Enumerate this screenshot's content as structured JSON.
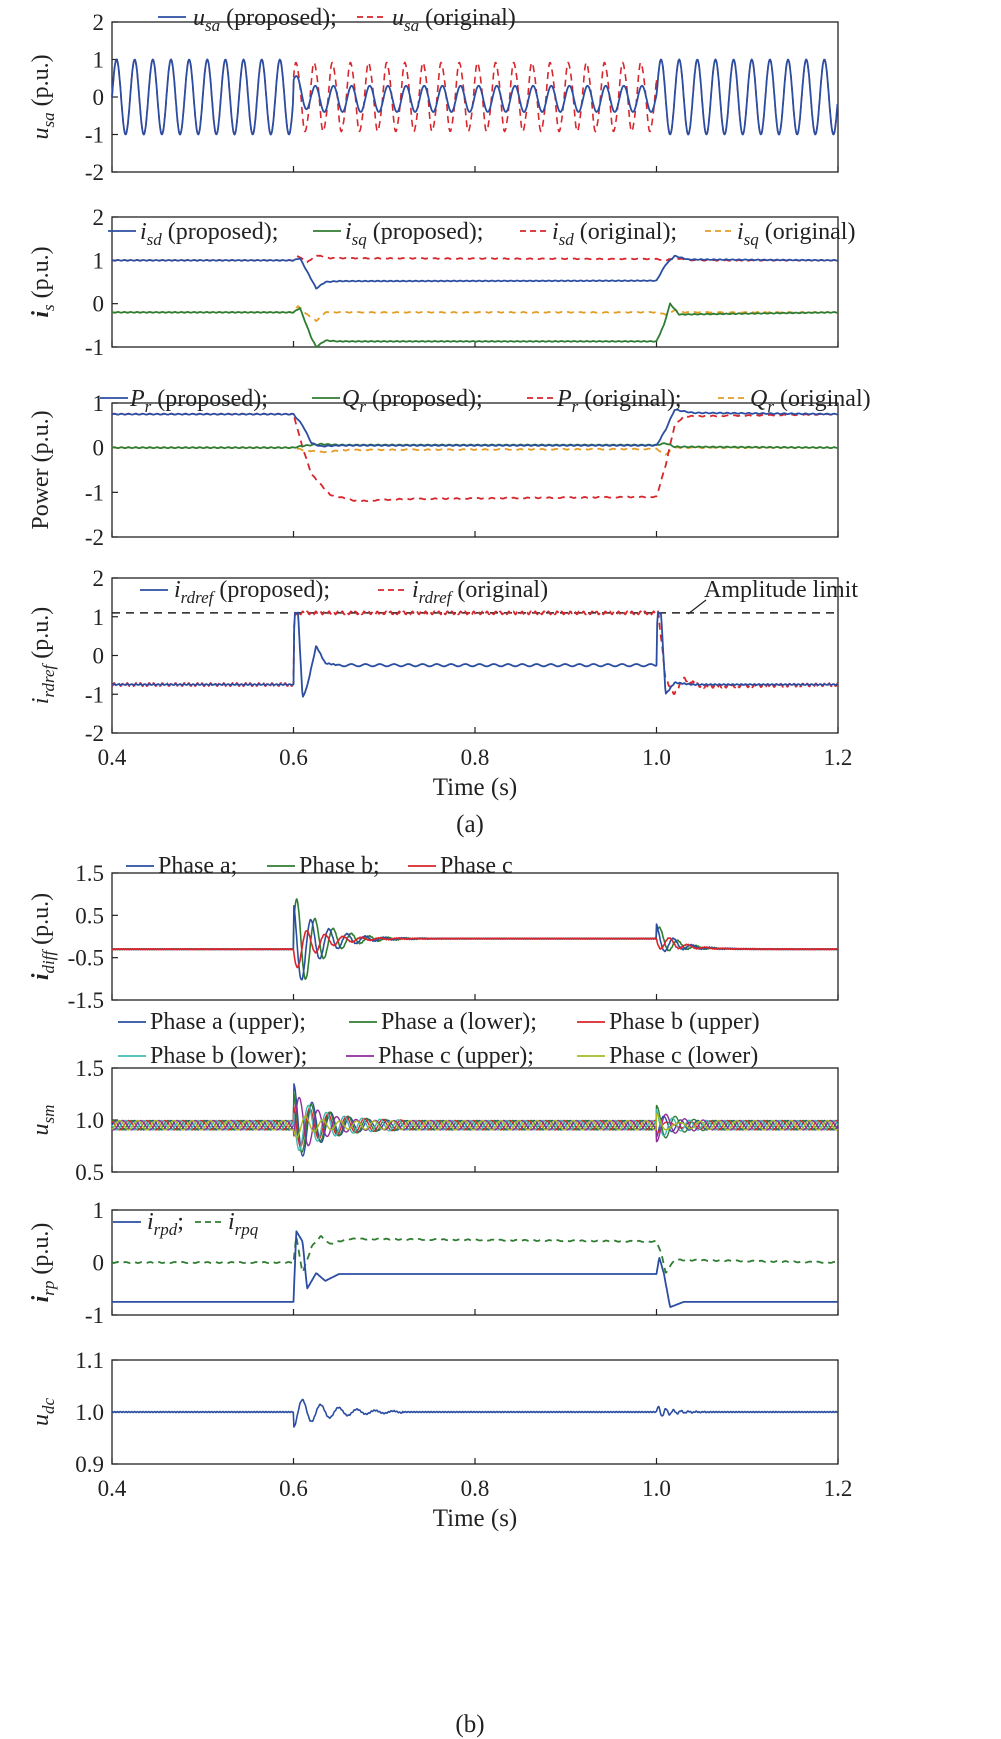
{
  "colors": {
    "blue": "#2b4ea2",
    "green": "#2e7d32",
    "red": "#d7262c",
    "orange": "#e39c25",
    "cyan": "#3fb9b0",
    "purple": "#8e2d9c",
    "olive": "#a8ba1f",
    "axis": "#222222"
  },
  "chart_data": [
    {
      "panel": "a",
      "type": "line",
      "ylabel": "u_sa (p.u.)",
      "ylim": [
        -2,
        2
      ],
      "yticks": [
        "2",
        "1",
        "0",
        "-1",
        "-2"
      ],
      "legend": "u_sa (proposed); u_sa (original)",
      "x_range": [
        0.4,
        1.2
      ],
      "series": [
        {
          "name": "u_sa (proposed)",
          "style": "solid",
          "color": "blue",
          "description": "50 Hz sinusoid amplitude 1.0; during 0.6-1.0 s amplitude about 0.35 oscillating around 0"
        },
        {
          "name": "u_sa (original)",
          "style": "dashed",
          "color": "red",
          "description": "during 0.6-1.0 s sinusoid amplitude about 0.9; outside identical to proposed"
        }
      ]
    },
    {
      "panel": "a",
      "type": "line",
      "ylabel": "i_s (p.u.)",
      "ylim": [
        -1,
        2
      ],
      "yticks": [
        "2",
        "1",
        "0",
        "-1"
      ],
      "legend": "i_sd (proposed); i_sq (proposed); i_sd (original); i_sq (original)",
      "x_range": [
        0.4,
        1.2
      ],
      "series": [
        {
          "name": "i_sd (proposed)",
          "style": "solid",
          "color": "blue",
          "points": [
            [
              0.4,
              1.0
            ],
            [
              0.6,
              1.0
            ],
            [
              0.607,
              1.05
            ],
            [
              0.62,
              0.55
            ],
            [
              0.625,
              0.35
            ],
            [
              0.635,
              0.5
            ],
            [
              0.65,
              0.52
            ],
            [
              1.0,
              0.53
            ],
            [
              1.01,
              0.9
            ],
            [
              1.02,
              1.1
            ],
            [
              1.035,
              1.02
            ],
            [
              1.2,
              1.0
            ]
          ]
        },
        {
          "name": "i_sq (proposed)",
          "style": "solid",
          "color": "green",
          "points": [
            [
              0.4,
              -0.2
            ],
            [
              0.6,
              -0.2
            ],
            [
              0.607,
              -0.1
            ],
            [
              0.62,
              -0.8
            ],
            [
              0.625,
              -1.0
            ],
            [
              0.635,
              -0.85
            ],
            [
              0.65,
              -0.87
            ],
            [
              1.0,
              -0.87
            ],
            [
              1.008,
              -0.5
            ],
            [
              1.015,
              0.0
            ],
            [
              1.025,
              -0.25
            ],
            [
              1.2,
              -0.2
            ]
          ]
        },
        {
          "name": "i_sd (original)",
          "style": "dashed",
          "color": "red",
          "points": [
            [
              0.4,
              1.0
            ],
            [
              0.6,
              1.0
            ],
            [
              0.605,
              1.1
            ],
            [
              0.615,
              0.95
            ],
            [
              0.625,
              1.12
            ],
            [
              0.64,
              1.05
            ],
            [
              1.0,
              1.03
            ],
            [
              1.01,
              1.0
            ],
            [
              1.02,
              1.05
            ],
            [
              1.04,
              1.0
            ],
            [
              1.2,
              1.0
            ]
          ]
        },
        {
          "name": "i_sq (original)",
          "style": "dashed",
          "color": "orange",
          "points": [
            [
              0.4,
              -0.2
            ],
            [
              0.6,
              -0.2
            ],
            [
              0.605,
              -0.05
            ],
            [
              0.615,
              -0.25
            ],
            [
              0.625,
              -0.4
            ],
            [
              0.635,
              -0.2
            ],
            [
              1.0,
              -0.2
            ],
            [
              1.01,
              -0.25
            ],
            [
              1.02,
              -0.15
            ],
            [
              1.03,
              -0.2
            ],
            [
              1.2,
              -0.2
            ]
          ]
        }
      ]
    },
    {
      "panel": "a",
      "type": "line",
      "ylabel": "Power (p.u.)",
      "ylim": [
        -2,
        1
      ],
      "yticks": [
        "1",
        "0",
        "-1",
        "-2"
      ],
      "legend": "P_r (proposed); Q_r (proposed); P_r (original); Q_r (original)",
      "x_range": [
        0.4,
        1.2
      ],
      "series": [
        {
          "name": "P_r (proposed)",
          "style": "solid",
          "color": "blue",
          "points": [
            [
              0.4,
              0.75
            ],
            [
              0.6,
              0.75
            ],
            [
              0.61,
              0.5
            ],
            [
              0.62,
              0.1
            ],
            [
              0.63,
              0.03
            ],
            [
              0.65,
              0.05
            ],
            [
              1.0,
              0.05
            ],
            [
              1.01,
              0.4
            ],
            [
              1.02,
              0.85
            ],
            [
              1.04,
              0.78
            ],
            [
              1.2,
              0.75
            ]
          ]
        },
        {
          "name": "Q_r (proposed)",
          "style": "solid",
          "color": "green",
          "points": [
            [
              0.4,
              0.0
            ],
            [
              0.6,
              0.0
            ],
            [
              0.61,
              0.04
            ],
            [
              0.63,
              0.08
            ],
            [
              0.65,
              0.06
            ],
            [
              1.0,
              0.06
            ],
            [
              1.01,
              0.1
            ],
            [
              1.02,
              0.02
            ],
            [
              1.2,
              0.0
            ]
          ]
        },
        {
          "name": "P_r (original)",
          "style": "dashed",
          "color": "red",
          "points": [
            [
              0.4,
              0.75
            ],
            [
              0.6,
              0.75
            ],
            [
              0.61,
              0.0
            ],
            [
              0.62,
              -0.6
            ],
            [
              0.64,
              -1.05
            ],
            [
              0.67,
              -1.2
            ],
            [
              0.72,
              -1.15
            ],
            [
              1.0,
              -1.1
            ],
            [
              1.01,
              -0.4
            ],
            [
              1.02,
              0.5
            ],
            [
              1.03,
              0.7
            ],
            [
              1.2,
              0.75
            ]
          ]
        },
        {
          "name": "Q_r (original)",
          "style": "dashed",
          "color": "orange",
          "points": [
            [
              0.4,
              0.0
            ],
            [
              0.6,
              0.0
            ],
            [
              0.61,
              -0.05
            ],
            [
              0.63,
              -0.1
            ],
            [
              0.66,
              -0.05
            ],
            [
              1.0,
              -0.03
            ],
            [
              1.01,
              -0.15
            ],
            [
              1.02,
              0.0
            ],
            [
              1.2,
              0.0
            ]
          ]
        }
      ]
    },
    {
      "panel": "a",
      "type": "line",
      "ylabel": "i_rdref (p.u.)",
      "ylim": [
        -2,
        2
      ],
      "yticks": [
        "2",
        "1",
        "0",
        "-1",
        "-2"
      ],
      "xticks": [
        "0.4",
        "0.6",
        "0.8",
        "1.0",
        "1.2"
      ],
      "xlabel": "Time (s)",
      "legend": "i_rdref (proposed); i_rdref (original)",
      "annotation": "Amplitude limit",
      "amplitude_limit": 1.1,
      "x_range": [
        0.4,
        1.2
      ],
      "series": [
        {
          "name": "i_rdref (proposed)",
          "style": "solid",
          "color": "blue",
          "points": [
            [
              0.4,
              -0.75
            ],
            [
              0.6,
              -0.75
            ],
            [
              0.601,
              1.1
            ],
            [
              0.605,
              1.1
            ],
            [
              0.61,
              -1.1
            ],
            [
              0.615,
              -0.8
            ],
            [
              0.625,
              0.25
            ],
            [
              0.635,
              -0.2
            ],
            [
              0.65,
              -0.25
            ],
            [
              1.0,
              -0.25
            ],
            [
              1.001,
              1.1
            ],
            [
              1.005,
              1.1
            ],
            [
              1.01,
              -1.0
            ],
            [
              1.02,
              -0.7
            ],
            [
              1.04,
              -0.75
            ],
            [
              1.2,
              -0.75
            ]
          ]
        },
        {
          "name": "i_rdref (original)",
          "style": "dashed",
          "color": "red",
          "points": [
            [
              0.4,
              -0.75
            ],
            [
              0.6,
              -0.75
            ],
            [
              0.601,
              1.1
            ],
            [
              1.002,
              1.1
            ],
            [
              1.01,
              -0.6
            ],
            [
              1.02,
              -1.0
            ],
            [
              1.03,
              -0.6
            ],
            [
              1.05,
              -0.8
            ],
            [
              1.2,
              -0.75
            ]
          ]
        }
      ]
    },
    {
      "panel": "b",
      "type": "line",
      "ylabel": "i_diff (p.u.)",
      "ylim": [
        -1.5,
        1.5
      ],
      "yticks": [
        "1.5",
        "0.5",
        "-0.5",
        "-1.5"
      ],
      "legend": "Phase a; Phase b; Phase c",
      "x_range": [
        0.4,
        1.2
      ],
      "series": [
        {
          "name": "Phase a",
          "color": "blue",
          "description": "baseline -0.3; damped oscillation 0.6-0.7 s peak about +1.0/-1.2; steady -0.05 during 0.65-1.0 s; small transient at 1.0 s"
        },
        {
          "name": "Phase b",
          "color": "green",
          "description": "baseline -0.3; largest oscillation peak about +1.2/-1.3 near 0.62-0.64 s"
        },
        {
          "name": "Phase c",
          "color": "red",
          "description": "baseline -0.3; small oscillation about +0.45/-0.3 after 0.6 s"
        }
      ]
    },
    {
      "panel": "b",
      "type": "line",
      "ylabel": "u_sm",
      "ylim": [
        0.5,
        1.5
      ],
      "yticks": [
        "1.5",
        "1.0",
        "0.5"
      ],
      "legend": "Phase a (upper); Phase a (lower); Phase b (upper); Phase b (lower); Phase c (upper); Phase c (lower)",
      "x_range": [
        0.4,
        1.2
      ],
      "series": [
        {
          "name": "Phase a (upper)",
          "color": "blue",
          "description": "ripple 0.9-1.0"
        },
        {
          "name": "Phase a (lower)",
          "color": "green",
          "description": "ripple 0.9-1.0; peak 1.35 at 0.63 s"
        },
        {
          "name": "Phase b (upper)",
          "color": "red",
          "description": "ripple 0.9-1.0"
        },
        {
          "name": "Phase b (lower)",
          "color": "cyan",
          "description": "ripple 0.9-1.0; peak 1.2"
        },
        {
          "name": "Phase c (upper)",
          "color": "purple",
          "description": "ripple 0.9-1.0; dip 0.6"
        },
        {
          "name": "Phase c (lower)",
          "color": "olive",
          "description": "ripple 0.9-1.0"
        }
      ]
    },
    {
      "panel": "b",
      "type": "line",
      "ylabel": "i_rp (p.u.)",
      "ylim": [
        -1,
        1
      ],
      "yticks": [
        "1",
        "0",
        "-1"
      ],
      "legend": "i_rpd; i_rpq",
      "x_range": [
        0.4,
        1.2
      ],
      "series": [
        {
          "name": "i_rpd",
          "style": "solid",
          "color": "blue",
          "points": [
            [
              0.4,
              -0.75
            ],
            [
              0.6,
              -0.75
            ],
            [
              0.603,
              0.6
            ],
            [
              0.61,
              0.4
            ],
            [
              0.615,
              -0.5
            ],
            [
              0.625,
              -0.2
            ],
            [
              0.635,
              -0.35
            ],
            [
              0.65,
              -0.22
            ],
            [
              1.0,
              -0.22
            ],
            [
              1.003,
              0.1
            ],
            [
              1.008,
              -0.2
            ],
            [
              1.015,
              -0.85
            ],
            [
              1.03,
              -0.75
            ],
            [
              1.2,
              -0.75
            ]
          ]
        },
        {
          "name": "i_rpq",
          "style": "dashed",
          "color": "green",
          "points": [
            [
              0.4,
              0.0
            ],
            [
              0.6,
              0.0
            ],
            [
              0.603,
              0.5
            ],
            [
              0.61,
              -0.2
            ],
            [
              0.62,
              0.3
            ],
            [
              0.63,
              0.5
            ],
            [
              0.64,
              0.35
            ],
            [
              0.66,
              0.45
            ],
            [
              1.0,
              0.4
            ],
            [
              1.005,
              0.2
            ],
            [
              1.01,
              -0.2
            ],
            [
              1.02,
              0.05
            ],
            [
              1.2,
              0.0
            ]
          ]
        }
      ]
    },
    {
      "panel": "b",
      "type": "line",
      "ylabel": "u_dc",
      "ylim": [
        0.9,
        1.1
      ],
      "yticks": [
        "1.1",
        "1.0",
        "0.9"
      ],
      "xticks": [
        "0.4",
        "0.6",
        "0.8",
        "1.0",
        "1.2"
      ],
      "xlabel": "Time (s)",
      "x_range": [
        0.4,
        1.2
      ],
      "series": [
        {
          "name": "u_dc",
          "color": "blue",
          "description": "1.0 p.u.; damped oscillation 0.6-0.7 s amplitude about 0.03; small ripple at 1.0 s"
        }
      ]
    }
  ],
  "captions": {
    "a": "(a)",
    "b": "(b)"
  },
  "labels": {
    "usa_main": "u",
    "usa_sub": "sa",
    "is_main": "i",
    "is_sub": "s",
    "power": "Power (p.u.)",
    "irdref_main": "i",
    "irdref_sub": "rdref",
    "idiff_main": "i",
    "idiff_sub": "diff",
    "usm_main": "u",
    "usm_sub": "sm",
    "irp_main": "i",
    "irp_sub": "rp",
    "udc_main": "u",
    "udc_sub": "dc",
    "pu": "(p.u.)"
  }
}
